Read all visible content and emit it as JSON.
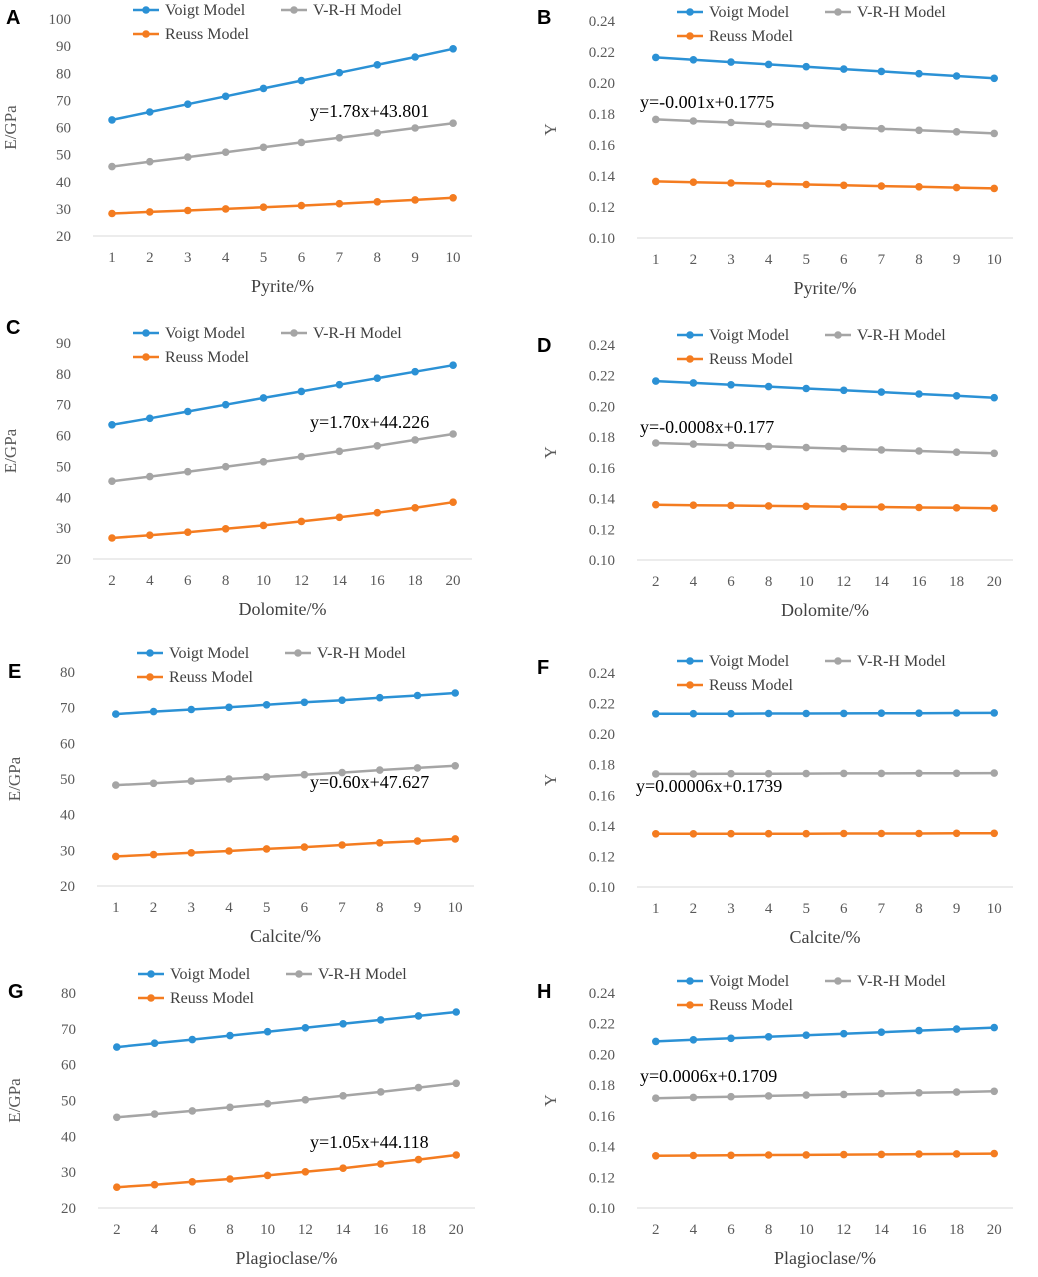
{
  "legend": {
    "voigt": "Voigt Model",
    "vrh": "V-R-H Model",
    "reuss": "Reuss Model"
  },
  "colors": {
    "voigt": "#2b91d5",
    "vrh": "#a5a5a5",
    "reuss": "#f47c20",
    "axis": "#d9d9d9"
  },
  "chart_data": [
    {
      "panel": "A",
      "type": "line",
      "x": [
        1,
        2,
        3,
        4,
        5,
        6,
        7,
        8,
        9,
        10
      ],
      "xlabel": "Pyrite/%",
      "ylabel": "E/GPa",
      "ylim": [
        20,
        100
      ],
      "yticks": [
        20,
        30,
        40,
        50,
        60,
        70,
        80,
        90,
        100
      ],
      "ydec": 0,
      "annotation": "y=1.78x+43.801",
      "series": [
        {
          "name": "Voigt Model",
          "values": [
            62.8,
            65.7,
            68.6,
            71.5,
            74.4,
            77.3,
            80.2,
            83.1,
            86.0,
            89.0
          ]
        },
        {
          "name": "V-R-H Model",
          "values": [
            45.6,
            47.4,
            49.1,
            50.9,
            52.7,
            54.5,
            56.2,
            58.0,
            59.8,
            61.6
          ]
        },
        {
          "name": "Reuss Model",
          "values": [
            28.3,
            28.9,
            29.4,
            30.0,
            30.6,
            31.2,
            31.9,
            32.6,
            33.3,
            34.1
          ]
        }
      ]
    },
    {
      "panel": "B",
      "type": "line",
      "x": [
        1,
        2,
        3,
        4,
        5,
        6,
        7,
        8,
        9,
        10
      ],
      "xlabel": "Pyrite/%",
      "ylabel": "Y",
      "ylim": [
        0.1,
        0.24
      ],
      "yticks": [
        0.1,
        0.12,
        0.14,
        0.16,
        0.18,
        0.2,
        0.22,
        0.24
      ],
      "ydec": 2,
      "annotation": "y=-0.001x+0.1775",
      "series": [
        {
          "name": "Voigt Model",
          "values": [
            0.2165,
            0.215,
            0.2135,
            0.212,
            0.2105,
            0.209,
            0.2075,
            0.206,
            0.2045,
            0.203
          ]
        },
        {
          "name": "V-R-H Model",
          "values": [
            0.1765,
            0.1755,
            0.1745,
            0.1735,
            0.1725,
            0.1715,
            0.1705,
            0.1695,
            0.1685,
            0.1675
          ]
        },
        {
          "name": "Reuss Model",
          "values": [
            0.1365,
            0.136,
            0.1355,
            0.135,
            0.1345,
            0.134,
            0.1335,
            0.133,
            0.1325,
            0.132
          ]
        }
      ]
    },
    {
      "panel": "C",
      "type": "line",
      "x": [
        2,
        4,
        6,
        8,
        10,
        12,
        14,
        16,
        18,
        20
      ],
      "xlabel": "Dolomite/%",
      "ylabel": "E/GPa",
      "ylim": [
        20,
        90
      ],
      "yticks": [
        20,
        30,
        40,
        50,
        60,
        70,
        80,
        90
      ],
      "ydec": 0,
      "annotation": "y=1.70x+44.226",
      "series": [
        {
          "name": "Voigt Model",
          "values": [
            63.5,
            65.6,
            67.8,
            70.0,
            72.2,
            74.3,
            76.5,
            78.6,
            80.7,
            82.8
          ]
        },
        {
          "name": "V-R-H Model",
          "values": [
            45.2,
            46.7,
            48.3,
            49.9,
            51.5,
            53.2,
            54.9,
            56.7,
            58.6,
            60.5
          ]
        },
        {
          "name": "Reuss Model",
          "values": [
            26.8,
            27.7,
            28.7,
            29.8,
            30.9,
            32.2,
            33.5,
            35.0,
            36.6,
            38.4
          ]
        }
      ]
    },
    {
      "panel": "D",
      "type": "line",
      "x": [
        2,
        4,
        6,
        8,
        10,
        12,
        14,
        16,
        18,
        20
      ],
      "xlabel": "Dolomite/%",
      "ylabel": "Y",
      "ylim": [
        0.1,
        0.24
      ],
      "yticks": [
        0.1,
        0.12,
        0.14,
        0.16,
        0.18,
        0.2,
        0.22,
        0.24
      ],
      "ydec": 2,
      "annotation": "y=-0.0008x+0.177",
      "series": [
        {
          "name": "Voigt Model",
          "values": [
            0.2165,
            0.2153,
            0.2141,
            0.2129,
            0.2117,
            0.2105,
            0.2093,
            0.2081,
            0.2069,
            0.2057
          ]
        },
        {
          "name": "V-R-H Model",
          "values": [
            0.1762,
            0.1755,
            0.1747,
            0.174,
            0.1732,
            0.1725,
            0.1717,
            0.171,
            0.1702,
            0.1695
          ]
        },
        {
          "name": "Reuss Model",
          "values": [
            0.136,
            0.1357,
            0.1355,
            0.1352,
            0.135,
            0.1347,
            0.1345,
            0.1342,
            0.134,
            0.1337
          ]
        }
      ]
    },
    {
      "panel": "E",
      "type": "line",
      "x": [
        1,
        2,
        3,
        4,
        5,
        6,
        7,
        8,
        9,
        10
      ],
      "xlabel": "Calcite/%",
      "ylabel": "E/GPa",
      "ylim": [
        20,
        80
      ],
      "yticks": [
        20,
        30,
        40,
        50,
        60,
        70,
        80
      ],
      "ydec": 0,
      "annotation": "y=0.60x+47.627",
      "series": [
        {
          "name": "Voigt Model",
          "values": [
            68.2,
            68.9,
            69.5,
            70.1,
            70.8,
            71.5,
            72.1,
            72.8,
            73.4,
            74.1
          ]
        },
        {
          "name": "V-R-H Model",
          "values": [
            48.3,
            48.8,
            49.4,
            50.0,
            50.6,
            51.2,
            51.8,
            52.5,
            53.1,
            53.7
          ]
        },
        {
          "name": "Reuss Model",
          "values": [
            28.3,
            28.8,
            29.3,
            29.8,
            30.4,
            30.9,
            31.5,
            32.1,
            32.6,
            33.2
          ]
        }
      ]
    },
    {
      "panel": "F",
      "type": "line",
      "x": [
        1,
        2,
        3,
        4,
        5,
        6,
        7,
        8,
        9,
        10
      ],
      "xlabel": "Calcite/%",
      "ylabel": "Y",
      "ylim": [
        0.1,
        0.24
      ],
      "yticks": [
        0.1,
        0.12,
        0.14,
        0.16,
        0.18,
        0.2,
        0.22,
        0.24
      ],
      "ydec": 2,
      "annotation": "y=0.00006x+0.1739",
      "series": [
        {
          "name": "Voigt Model",
          "values": [
            0.2133,
            0.2134,
            0.2134,
            0.2135,
            0.2135,
            0.2136,
            0.2137,
            0.2137,
            0.2138,
            0.2139
          ]
        },
        {
          "name": "V-R-H Model",
          "values": [
            0.174,
            0.174,
            0.1741,
            0.1741,
            0.1742,
            0.1743,
            0.1743,
            0.1744,
            0.1744,
            0.1745
          ]
        },
        {
          "name": "Reuss Model",
          "values": [
            0.1348,
            0.1348,
            0.1349,
            0.1349,
            0.1349,
            0.135,
            0.135,
            0.135,
            0.1351,
            0.1351
          ]
        }
      ]
    },
    {
      "panel": "G",
      "type": "line",
      "x": [
        2,
        4,
        6,
        8,
        10,
        12,
        14,
        16,
        18,
        20
      ],
      "xlabel": "Plagioclase/%",
      "ylabel": "E/GPa",
      "ylim": [
        20,
        80
      ],
      "yticks": [
        20,
        30,
        40,
        50,
        60,
        70,
        80
      ],
      "ydec": 0,
      "annotation": "y=1.05x+44.118",
      "series": [
        {
          "name": "Voigt Model",
          "values": [
            64.9,
            66.0,
            67.0,
            68.1,
            69.2,
            70.3,
            71.4,
            72.5,
            73.6,
            74.7
          ]
        },
        {
          "name": "V-R-H Model",
          "values": [
            45.3,
            46.2,
            47.1,
            48.1,
            49.1,
            50.2,
            51.3,
            52.4,
            53.6,
            54.8
          ]
        },
        {
          "name": "Reuss Model",
          "values": [
            25.8,
            26.5,
            27.3,
            28.1,
            29.1,
            30.1,
            31.1,
            32.3,
            33.5,
            34.8
          ]
        }
      ]
    },
    {
      "panel": "H",
      "type": "line",
      "x": [
        2,
        4,
        6,
        8,
        10,
        12,
        14,
        16,
        18,
        20
      ],
      "xlabel": "Plagioclase/%",
      "ylabel": "Y",
      "ylim": [
        0.1,
        0.24
      ],
      "yticks": [
        0.1,
        0.12,
        0.14,
        0.16,
        0.18,
        0.2,
        0.22,
        0.24
      ],
      "ydec": 2,
      "annotation": "y=0.0006x+0.1709",
      "series": [
        {
          "name": "Voigt Model",
          "values": [
            0.2085,
            0.2095,
            0.2105,
            0.2115,
            0.2125,
            0.2135,
            0.2145,
            0.2155,
            0.2165,
            0.2175
          ]
        },
        {
          "name": "V-R-H Model",
          "values": [
            0.1715,
            0.172,
            0.1725,
            0.173,
            0.1735,
            0.174,
            0.1745,
            0.175,
            0.1755,
            0.176
          ]
        },
        {
          "name": "Reuss Model",
          "values": [
            0.134,
            0.1342,
            0.1343,
            0.1345,
            0.1346,
            0.1348,
            0.1349,
            0.1351,
            0.1352,
            0.1354
          ]
        }
      ]
    }
  ]
}
